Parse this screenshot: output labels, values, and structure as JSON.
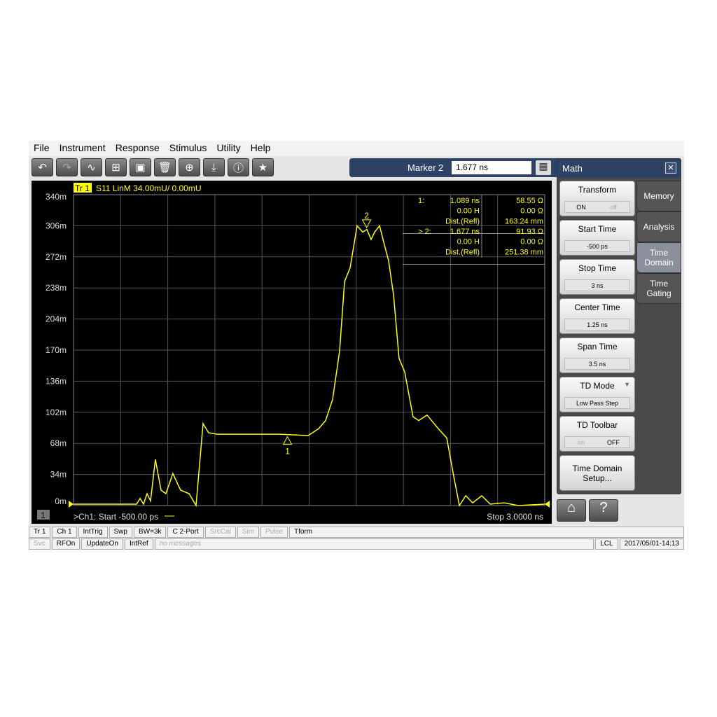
{
  "menu": [
    "File",
    "Instrument",
    "Response",
    "Stimulus",
    "Utility",
    "Help"
  ],
  "toolbar": [
    {
      "icon": "undo-icon",
      "g": "↶"
    },
    {
      "icon": "redo-icon",
      "g": "↷"
    },
    {
      "icon": "add-trace-icon",
      "g": "∿"
    },
    {
      "icon": "add-window-icon",
      "g": "⊞"
    },
    {
      "icon": "add-channel-icon",
      "g": "▣"
    },
    {
      "icon": "delete-icon",
      "g": "🗑"
    },
    {
      "icon": "zoom-icon",
      "g": "⊕"
    },
    {
      "icon": "download-icon",
      "g": "⤓"
    },
    {
      "icon": "info-icon",
      "g": "ⓘ"
    },
    {
      "icon": "star-icon",
      "g": "★"
    }
  ],
  "marker": {
    "label": "Marker 2",
    "value": "1.677 ns"
  },
  "trace": {
    "tag": "Tr 1",
    "info": "S11 LinM 34.00mU/  0.00mU",
    "color": "#ffff00"
  },
  "readout": [
    {
      "id": "1:",
      "time": "1.089  ns",
      "value": "58.55 Ω",
      "l2": "0.00 H",
      "v2": "0.00 Ω",
      "l3": "Dist.(Refl)",
      "v3": "163.24 mm"
    },
    {
      "id": "> 2:",
      "time": "1.677  ns",
      "value": "91.93 Ω",
      "l2": "0.00 H",
      "v2": "0.00 Ω",
      "l3": "Dist.(Refl)",
      "v3": "251.38 mm"
    }
  ],
  "chart_data": {
    "type": "line",
    "xlim": [
      -0.5,
      3.0
    ],
    "ylim": [
      0,
      340
    ],
    "yticks": [
      "340m",
      "306m",
      "272m",
      "238m",
      "204m",
      "170m",
      "136m",
      "102m",
      "68m",
      "34m",
      "0m"
    ],
    "grid": true,
    "markers": [
      {
        "label": "1",
        "x": 1.089
      },
      {
        "label": "2",
        "x": 1.677
      }
    ],
    "x": [
      -0.5,
      -0.032,
      -0.006,
      0.02,
      0.046,
      0.072,
      0.108,
      0.15,
      0.186,
      0.238,
      0.295,
      0.358,
      0.41,
      0.462,
      0.503,
      0.566,
      1.034,
      1.242,
      1.32,
      1.372,
      1.424,
      1.476,
      1.513,
      1.554,
      1.606,
      1.648,
      1.679,
      1.71,
      1.736,
      1.773,
      1.804,
      1.84,
      1.877,
      1.918,
      1.96,
      2.022,
      2.064,
      2.126,
      2.204,
      2.272,
      2.324,
      2.366,
      2.413,
      2.465,
      2.532,
      2.595,
      2.699,
      2.803,
      3.0
    ],
    "y": [
      1.5,
      1.5,
      7.7,
      1.5,
      13,
      5,
      50.5,
      16.8,
      13,
      35,
      16.8,
      13,
      0,
      89.6,
      79.6,
      78,
      78,
      76.5,
      84,
      93,
      116,
      169,
      245,
      260,
      306,
      299,
      302,
      291,
      299,
      306,
      288,
      268,
      230,
      161,
      146,
      97,
      93,
      99,
      85,
      74,
      32,
      0,
      10.7,
      3,
      10.7,
      1.5,
      3,
      0,
      1.5
    ]
  },
  "channel": {
    "num": "1",
    "start": ">Ch1:  Start  -500.00 ps",
    "stop": "Stop  3.0000 ns"
  },
  "status1": [
    {
      "t": "Tr 1"
    },
    {
      "t": "Ch 1"
    },
    {
      "t": "IntTrig"
    },
    {
      "t": "Swp"
    },
    {
      "t": "BW=3k"
    },
    {
      "t": "C  2-Port"
    },
    {
      "t": "SrcCal",
      "dim": true
    },
    {
      "t": "Sim",
      "dim": true
    },
    {
      "t": "Pulse",
      "dim": true
    },
    {
      "t": "Tform",
      "grow": true
    }
  ],
  "status2": [
    {
      "t": "Svc",
      "dim": true
    },
    {
      "t": "RFOn"
    },
    {
      "t": "UpdateOn"
    },
    {
      "t": "IntRef"
    },
    {
      "t": "no messages",
      "dim": true,
      "grow": true,
      "italic": true
    },
    {
      "t": "LCL"
    },
    {
      "t": "2017/05/01-14:13"
    }
  ],
  "panel": {
    "title": "Math",
    "buttons": [
      {
        "label": "Transform",
        "toggle": [
          "ON",
          "off"
        ],
        "on": 0
      },
      {
        "label": "Start Time",
        "value": "-500 ps"
      },
      {
        "label": "Stop Time",
        "value": "3 ns"
      },
      {
        "label": "Center Time",
        "value": "1.25 ns"
      },
      {
        "label": "Span Time",
        "value": "3.5 ns"
      },
      {
        "label": "TD Mode",
        "value": "Low Pass Step",
        "dropdown": true
      },
      {
        "label": "TD Toolbar",
        "toggle": [
          "on",
          "OFF"
        ],
        "on": 1
      },
      {
        "label": "Time Domain Setup..."
      }
    ],
    "tabs": [
      {
        "label": "Memory"
      },
      {
        "label": "Analysis"
      },
      {
        "label": "Time Domain",
        "selected": true
      },
      {
        "label": "Time Gating"
      }
    ]
  }
}
